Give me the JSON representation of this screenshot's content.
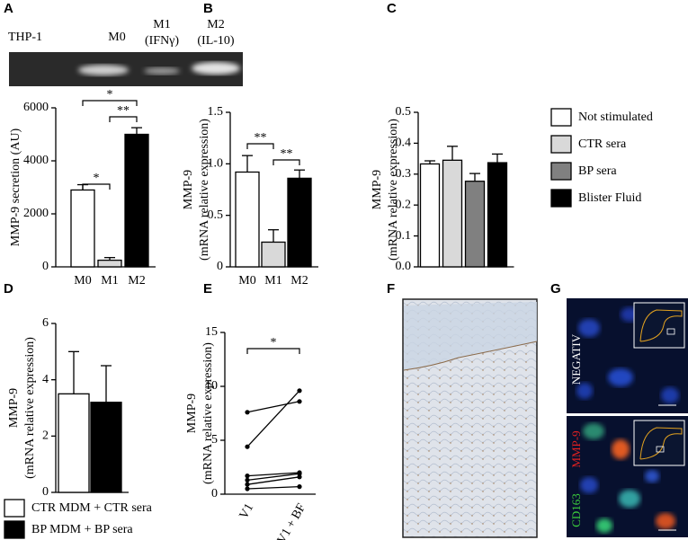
{
  "panel_labels": [
    "A",
    "B",
    "C",
    "D",
    "E",
    "F",
    "G"
  ],
  "gel_labels": [
    "THP-1",
    "M0",
    "M1",
    "(IFNγ)",
    "M2",
    "(IL-10)"
  ],
  "image_labels": {
    "negative": "NEGATIV",
    "cd163": "CD163",
    "mmp9": "MMP-9"
  },
  "chart_data": [
    {
      "type": "bar",
      "ylabel": [
        "MMP-9 secretion (AU)"
      ],
      "categories": [
        "M0",
        "M1",
        "M2"
      ],
      "values": [
        2900,
        250,
        5000
      ],
      "errors": [
        200,
        100,
        250
      ],
      "colors": [
        "#ffffff",
        "#d9d9d9",
        "#000000"
      ],
      "ylim": [
        0,
        6000
      ],
      "yticks": [
        0,
        2000,
        4000,
        6000
      ],
      "annotations": [
        "*",
        "**",
        "*"
      ]
    },
    {
      "type": "bar",
      "ylabel": [
        "MMP-9",
        "(mRNA relative expression)"
      ],
      "categories": [
        "M0",
        "M1",
        "M2"
      ],
      "values": [
        0.92,
        0.24,
        0.86
      ],
      "errors": [
        0.16,
        0.12,
        0.08
      ],
      "colors": [
        "#ffffff",
        "#d9d9d9",
        "#000000"
      ],
      "ylim": [
        0,
        1.5
      ],
      "yticks": [
        0,
        0.5,
        {
          "value": 1.0,
          "label": "1.0"
        },
        1.5
      ],
      "annotations": [
        "**",
        "**"
      ]
    },
    {
      "type": "bar",
      "ylabel": [
        "MMP-9",
        "(mRNA relative expression)"
      ],
      "series": [
        {
          "name": "Not stimulated",
          "color": "#ffffff",
          "values": [
            0.333
          ],
          "errors": [
            0.01
          ]
        },
        {
          "name": "CTR sera",
          "color": "#d9d9d9",
          "values": [
            0.345
          ],
          "errors": [
            0.045
          ]
        },
        {
          "name": "BP sera",
          "color": "#808080",
          "values": [
            0.277
          ],
          "errors": [
            0.025
          ]
        },
        {
          "name": "Blister Fluid",
          "color": "#000000",
          "values": [
            0.337
          ],
          "errors": [
            0.028
          ]
        }
      ],
      "ylim": [
        0,
        0.5
      ],
      "yticks": [
        {
          "value": 0,
          "label": "0.0"
        },
        0.1,
        0.2,
        0.3,
        0.4,
        0.5
      ],
      "legend": "right"
    },
    {
      "type": "bar",
      "ylabel": [
        "MMP-9",
        "(mRNA relative expression)"
      ],
      "series": [
        {
          "name": "CTR MDM + CTR sera",
          "color": "#ffffff",
          "values": [
            3.5
          ],
          "errors": [
            1.5
          ]
        },
        {
          "name": "BP MDM + BP sera",
          "color": "#000000",
          "values": [
            3.2
          ],
          "errors": [
            1.3
          ]
        }
      ],
      "ylim": [
        0,
        6
      ],
      "yticks": [
        0,
        2,
        4,
        6
      ],
      "legend": "bottom"
    },
    {
      "type": "line",
      "ylabel": [
        "MMP-9",
        "(mRNA relative expression)"
      ],
      "categories": [
        "V1",
        "V1 + BF"
      ],
      "series": [
        {
          "color": "#000000",
          "values": [
            7.6,
            8.6
          ]
        },
        {
          "color": "#000000",
          "values": [
            4.4,
            9.6
          ]
        },
        {
          "color": "#000000",
          "values": [
            1.7,
            2.0
          ]
        },
        {
          "color": "#000000",
          "values": [
            1.3,
            1.9
          ]
        },
        {
          "color": "#000000",
          "values": [
            0.9,
            1.6
          ]
        },
        {
          "color": "#000000",
          "values": [
            0.5,
            0.7
          ]
        }
      ],
      "ylim": [
        0,
        15
      ],
      "yticks": [
        0,
        5,
        10,
        15
      ],
      "annotations": [
        "*"
      ]
    }
  ]
}
